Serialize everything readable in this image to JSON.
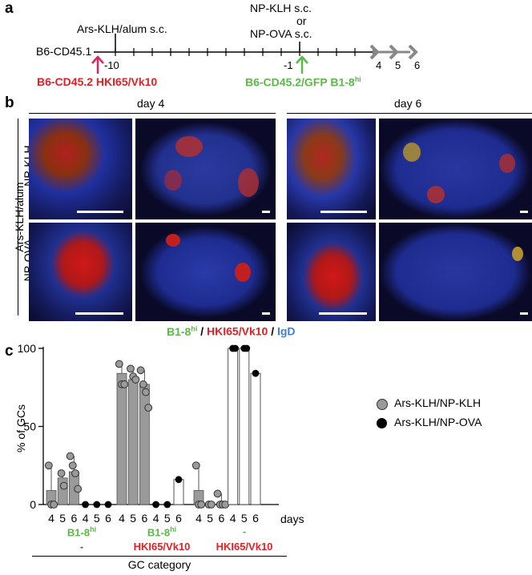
{
  "panel_a": {
    "letter": "a",
    "mouse": "B6-CD45.1",
    "prime": "Ars-KLH/alum s.c.",
    "boost_1": "NP-KLH s.c.",
    "boost_or": "or",
    "boost_2": "NP-OVA s.c.",
    "tick_m10": "-10",
    "tick_m1": "-1",
    "days": [
      "4",
      "5",
      "6"
    ],
    "transfer_red": "B6-CD45.2 HKI65/Vk10",
    "transfer_green_main": "B6-CD45.2/GFP B1-8",
    "transfer_green_sup": "hi",
    "colors": {
      "red": "#e32025",
      "green": "#5cb848",
      "magenta": "#e0245e",
      "arrow_grey": "#888888"
    }
  },
  "panel_b": {
    "letter": "b",
    "day4": "day 4",
    "day6": "day 6",
    "row_group": "Ars-KLH/alum",
    "row1": "NP-KLH",
    "row2": "NP-OVA",
    "legend_green_main": "B1-8",
    "legend_green_sup": "hi",
    "legend_sep": " / ",
    "legend_red": "HKI65/Vk10",
    "legend_blue": "IgD"
  },
  "panel_c": {
    "letter": "c",
    "ylabel": "% of GCs",
    "days_label": "days",
    "xlabel": "GC category",
    "legend": [
      "Ars-KLH/NP-KLH",
      "Ars-KLH/NP-OVA"
    ],
    "cat1": {
      "line1_main": "B1-8",
      "line1_sup": "hi",
      "line2": "-"
    },
    "cat2": {
      "line1_main": "B1-8",
      "line1_sup": "hi",
      "line2": "HKI65/Vk10"
    },
    "cat3": {
      "line1": "-",
      "line2": "HKI65/Vk10"
    }
  },
  "chart_data": {
    "type": "bar",
    "ylabel": "% of GCs",
    "xlabel": "GC category",
    "ylim": [
      0,
      100
    ],
    "yticks": [
      0,
      50,
      100
    ],
    "categories": [
      "B1-8hi / -",
      "B1-8hi / HKI65/Vk10",
      "- / HKI65/Vk10"
    ],
    "days": [
      "4",
      "5",
      "6"
    ],
    "series": [
      {
        "name": "Ars-KLH/NP-KLH",
        "color": "#9a9a9a",
        "values": [
          [
            9,
            17,
            21
          ],
          [
            84,
            80,
            77
          ],
          [
            9,
            0,
            1
          ]
        ],
        "points": [
          [
            [
              25,
              0,
              0
            ],
            [
              20,
              12
            ],
            [
              31,
              25,
              20,
              10
            ]
          ],
          [
            [
              90,
              77,
              77
            ],
            [
              87,
              82,
              80
            ],
            [
              86,
              77,
              72,
              62
            ]
          ],
          [
            [
              25,
              0,
              0
            ],
            [
              0,
              0
            ],
            [
              7,
              0,
              0,
              0
            ]
          ]
        ]
      },
      {
        "name": "Ars-KLH/NP-OVA",
        "color": "#000000",
        "values": [
          [
            0,
            0,
            0
          ],
          [
            0,
            0,
            16
          ],
          [
            100,
            100,
            84
          ]
        ],
        "points": [
          [
            [
              0
            ],
            [
              0
            ],
            [
              0
            ]
          ],
          [
            [
              0
            ],
            [
              0
            ],
            [
              16
            ]
          ],
          [
            [
              100,
              100
            ],
            [
              100,
              100
            ],
            [
              84
            ]
          ]
        ]
      }
    ],
    "legend_position": "right"
  }
}
